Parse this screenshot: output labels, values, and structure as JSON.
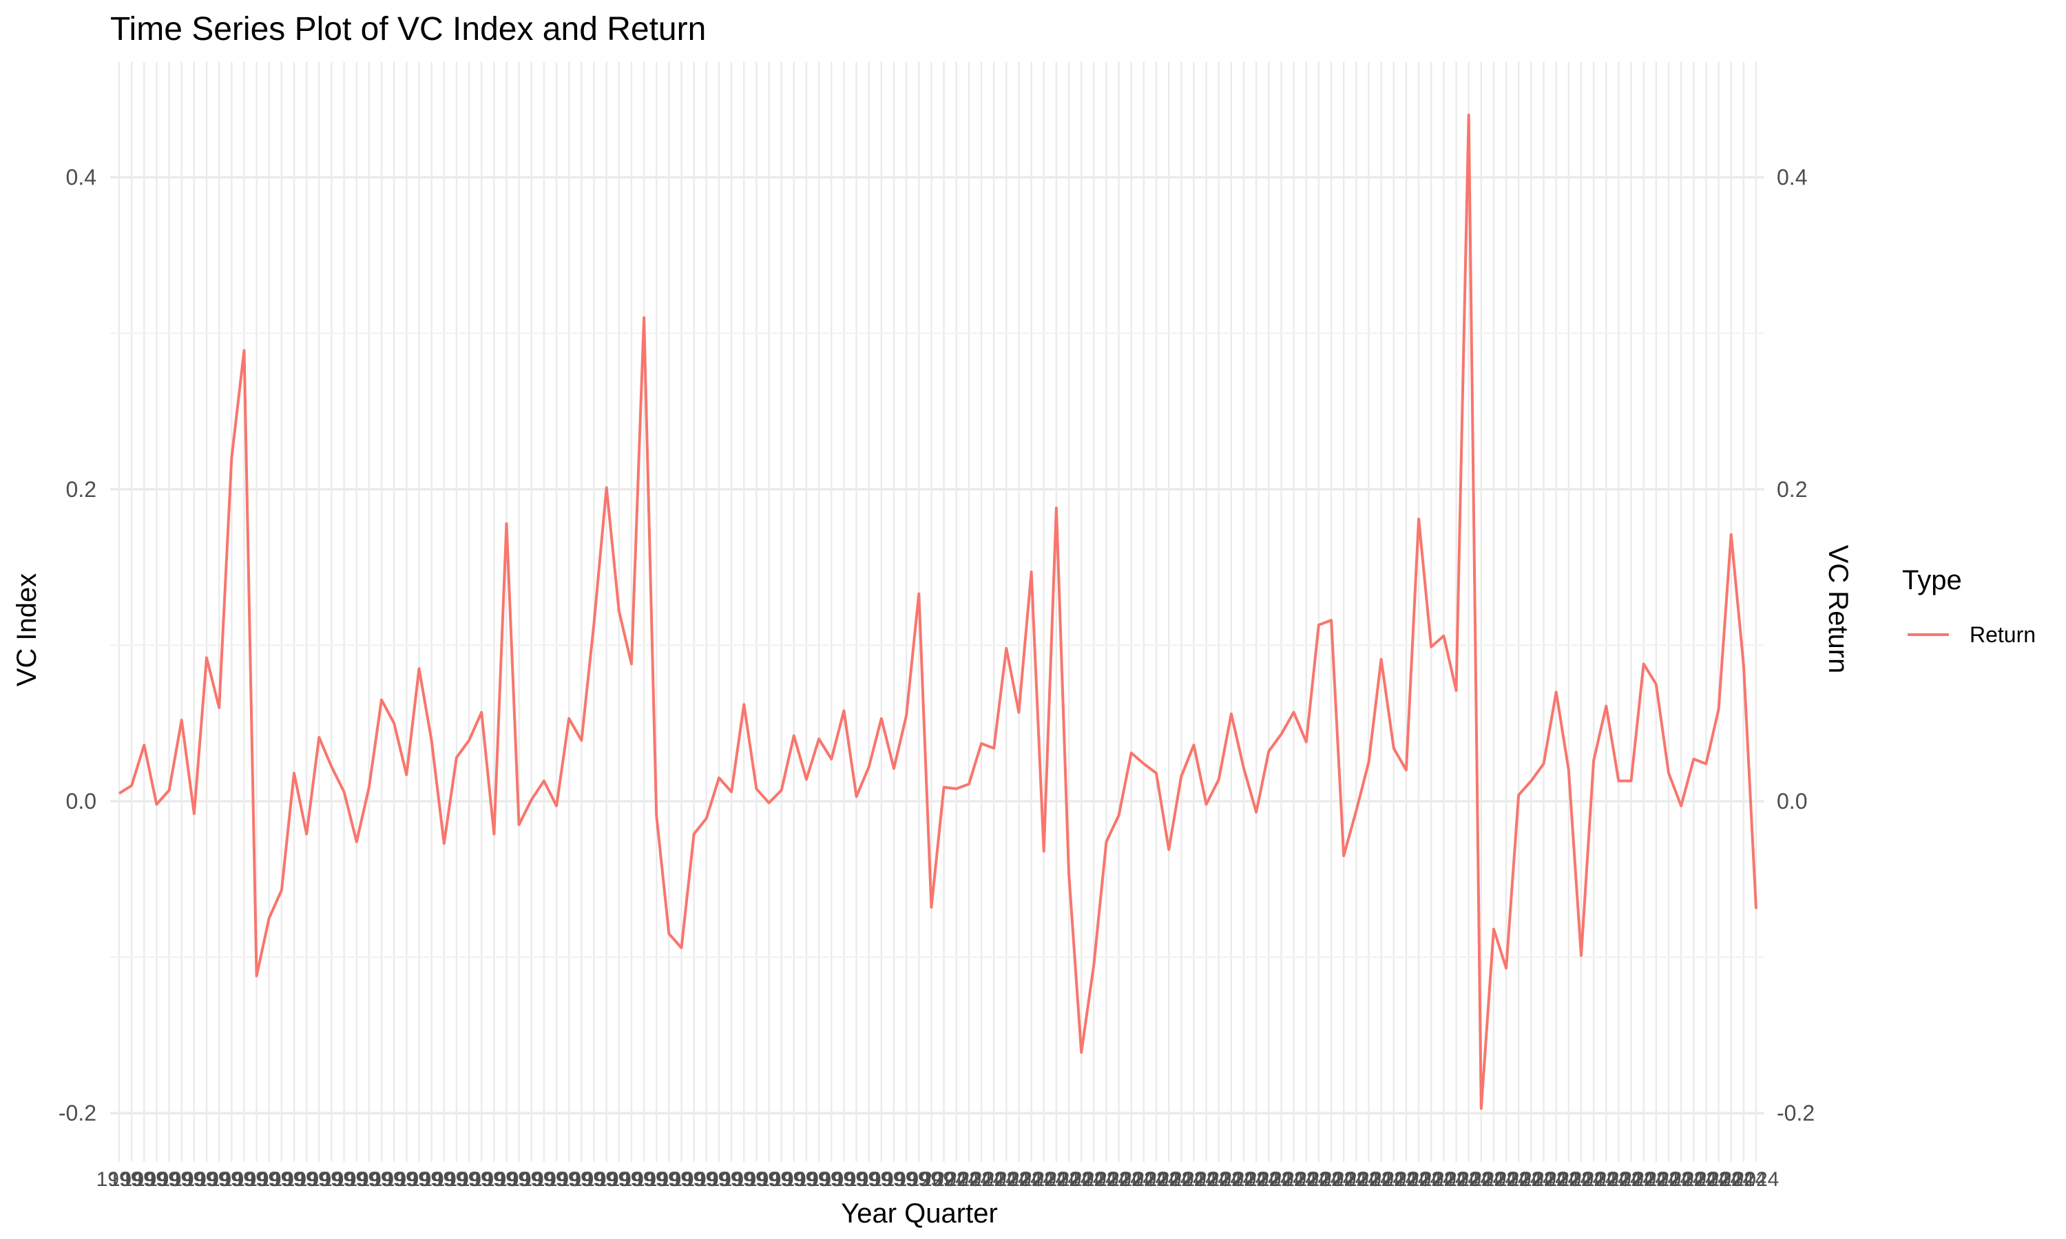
{
  "chart_data": {
    "type": "line",
    "title": "Time Series Plot of VC Index and Return",
    "xlabel": "Year Quarter",
    "ylabel": "VC Index",
    "ylabel_right": "VC Return",
    "ylabel_right_color": "#0000ff",
    "ylim": [
      -0.228,
      0.47
    ],
    "y_ticks": [
      -0.2,
      0.0,
      0.2,
      0.4
    ],
    "y_tick_labels": [
      "-0.2",
      "0.0",
      "0.2",
      "0.4"
    ],
    "y_tick_labels_right": [
      "-0.2",
      "0.0",
      "0.2",
      "0.4"
    ],
    "grid": true,
    "legend": {
      "title": "Type",
      "placement": "right",
      "entries": [
        {
          "label": "Return",
          "color": "#f8766d"
        }
      ]
    },
    "series": [
      {
        "name": "Return",
        "color": "#f8766d",
        "values": [
          0.005,
          0.01,
          0.036,
          -0.002,
          0.007,
          0.052,
          -0.008,
          0.092,
          0.06,
          0.22,
          0.289,
          -0.112,
          -0.075,
          -0.057,
          0.018,
          -0.021,
          0.041,
          0.022,
          0.006,
          -0.026,
          0.009,
          0.065,
          0.05,
          0.017,
          0.085,
          0.039,
          -0.027,
          0.028,
          0.039,
          0.057,
          -0.021,
          0.178,
          -0.015,
          0.001,
          0.013,
          -0.003,
          0.053,
          0.039,
          0.114,
          0.201,
          0.122,
          0.088,
          0.31,
          -0.009,
          -0.085,
          -0.094,
          -0.021,
          -0.011,
          0.015,
          0.006,
          0.062,
          0.008,
          -0.001,
          0.007,
          0.042,
          0.014,
          0.04,
          0.027,
          0.058,
          0.003,
          0.022,
          0.053,
          0.021,
          0.055,
          0.133,
          -0.068,
          0.009,
          0.008,
          0.011,
          0.037,
          0.034,
          0.098,
          0.057,
          0.147,
          -0.032,
          0.188,
          -0.046,
          -0.161,
          -0.105,
          -0.026,
          -0.009,
          0.031,
          0.024,
          0.018,
          -0.031,
          0.016,
          0.036,
          -0.002,
          0.014,
          0.056,
          0.021,
          -0.007,
          0.032,
          0.043,
          0.057,
          0.038,
          0.113,
          0.116,
          -0.035,
          -0.006,
          0.025,
          0.091,
          0.034,
          0.02,
          0.181,
          0.099,
          0.106,
          0.071,
          0.44,
          -0.197,
          -0.082,
          -0.107,
          0.004,
          0.013,
          0.024,
          0.07,
          0.02,
          -0.099,
          0.026,
          0.061,
          0.013,
          0.013,
          0.088,
          0.075,
          0.018,
          -0.003,
          0.027,
          0.024,
          0.059,
          0.171,
          0.087,
          -0.069
        ]
      }
    ],
    "x_tick_label_first": "1999",
    "x_tick_label_last": "2024"
  }
}
